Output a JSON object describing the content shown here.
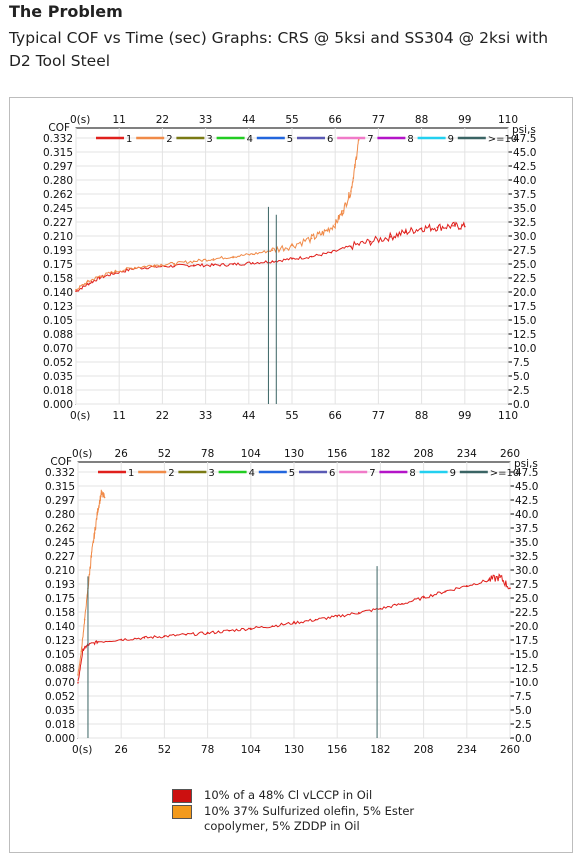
{
  "header": {
    "title": "The Problem",
    "subtitle": "Typical COF vs Time (sec) Graphs: CRS @ 5ksi and SS304 @ 2ksi with D2 Tool Steel"
  },
  "legend": [
    {
      "label": "10% of a 48% Cl vLCCP in Oil",
      "color": "#cc1010"
    },
    {
      "label": "10% 37% Sulfurized olefin, 5% Ester copolymer, 5% ZDDP in Oil",
      "color": "#f39a1c"
    }
  ],
  "chart_data": [
    {
      "type": "line",
      "ylabel": "COF",
      "y2label": "psi,s",
      "xlabel_zero": "0(s)",
      "x_ticks": [
        "0(s)",
        "11",
        "22",
        "33",
        "44",
        "55",
        "66",
        "77",
        "88",
        "99",
        "110"
      ],
      "xlim": [
        0,
        110
      ],
      "ylim": [
        0,
        0.35
      ],
      "y_ticks": [
        "0.000",
        "0.018",
        "0.035",
        "0.052",
        "0.070",
        "0.088",
        "0.105",
        "0.123",
        "0.140",
        "0.158",
        "0.175",
        "0.193",
        "0.210",
        "0.227",
        "0.245",
        "0.262",
        "0.280",
        "0.297",
        "0.315",
        "0.332"
      ],
      "y2_ticks": [
        "0.0",
        "2.5",
        "5.0",
        "7.5",
        "10.0",
        "12.5",
        "15.0",
        "17.5",
        "20.0",
        "22.5",
        "25.0",
        "27.5",
        "30.0",
        "32.5",
        "35.0",
        "37.5",
        "40.0",
        "42.5",
        "45.0",
        "47.5"
      ],
      "channel_legend": [
        {
          "label": "1",
          "color": "#e0201c"
        },
        {
          "label": "2",
          "color": "#f08a48"
        },
        {
          "label": "3",
          "color": "#7a7a14"
        },
        {
          "label": "4",
          "color": "#22cc22"
        },
        {
          "label": "5",
          "color": "#2266dd"
        },
        {
          "label": "6",
          "color": "#5a5ab4"
        },
        {
          "label": "7",
          "color": "#f07ac8"
        },
        {
          "label": "8",
          "color": "#b414c8"
        },
        {
          "label": "9",
          "color": "#22d0f0"
        },
        {
          "label": ">=10",
          "color": "#3a6464"
        }
      ],
      "series": [
        {
          "name": "1",
          "color": "#e0201c",
          "x": [
            0,
            3,
            6,
            10,
            15,
            20,
            25,
            30,
            35,
            40,
            45,
            50,
            55,
            60,
            65,
            70,
            75,
            80,
            84,
            88,
            92,
            96,
            99
          ],
          "y": [
            0.143,
            0.152,
            0.16,
            0.166,
            0.172,
            0.174,
            0.175,
            0.176,
            0.176,
            0.177,
            0.179,
            0.181,
            0.184,
            0.187,
            0.192,
            0.2,
            0.206,
            0.212,
            0.218,
            0.223,
            0.224,
            0.226,
            0.225
          ]
        },
        {
          "name": "2",
          "color": "#f08a48",
          "x": [
            0,
            3,
            6,
            10,
            15,
            20,
            25,
            30,
            35,
            40,
            45,
            50,
            55,
            60,
            63,
            66,
            68,
            70,
            71,
            72
          ],
          "y": [
            0.145,
            0.155,
            0.162,
            0.168,
            0.173,
            0.176,
            0.178,
            0.181,
            0.184,
            0.187,
            0.19,
            0.195,
            0.201,
            0.21,
            0.217,
            0.228,
            0.245,
            0.27,
            0.3,
            0.335
          ]
        },
        {
          "name": ">=10",
          "color": "#3a6464",
          "x": [
            49,
            49,
            51,
            51
          ],
          "y": [
            0.0,
            0.25,
            0.0,
            0.24
          ]
        }
      ]
    },
    {
      "type": "line",
      "ylabel": "COF",
      "y2label": "psi,s",
      "xlabel_zero": "0(s)",
      "x_ticks": [
        "0(s)",
        "26",
        "52",
        "78",
        "104",
        "130",
        "156",
        "182",
        "208",
        "234",
        "260"
      ],
      "xlim": [
        0,
        260
      ],
      "ylim": [
        0,
        0.35
      ],
      "y_ticks": [
        "0.000",
        "0.018",
        "0.035",
        "0.052",
        "0.070",
        "0.088",
        "0.105",
        "0.123",
        "0.140",
        "0.158",
        "0.175",
        "0.193",
        "0.210",
        "0.227",
        "0.245",
        "0.262",
        "0.280",
        "0.297",
        "0.315",
        "0.332"
      ],
      "y2_ticks": [
        "0.0",
        "2.5",
        "5.0",
        "7.5",
        "10.0",
        "12.5",
        "15.0",
        "17.5",
        "20.0",
        "22.5",
        "25.0",
        "27.5",
        "30.0",
        "32.5",
        "35.0",
        "37.5",
        "40.0",
        "42.5",
        "45.0",
        "47.5"
      ],
      "channel_legend": [
        {
          "label": "1",
          "color": "#e0201c"
        },
        {
          "label": "2",
          "color": "#f08a48"
        },
        {
          "label": "3",
          "color": "#7a7a14"
        },
        {
          "label": "4",
          "color": "#22cc22"
        },
        {
          "label": "5",
          "color": "#2266dd"
        },
        {
          "label": "6",
          "color": "#5a5ab4"
        },
        {
          "label": "7",
          "color": "#f07ac8"
        },
        {
          "label": "8",
          "color": "#b414c8"
        },
        {
          "label": "9",
          "color": "#22d0f0"
        },
        {
          "label": ">=10",
          "color": "#3a6464"
        }
      ],
      "series": [
        {
          "name": "1",
          "color": "#e0201c",
          "x": [
            0,
            3,
            6,
            12,
            26,
            40,
            52,
            65,
            78,
            91,
            104,
            117,
            130,
            143,
            156,
            169,
            182,
            195,
            208,
            221,
            234,
            247,
            254,
            260
          ],
          "y": [
            0.07,
            0.112,
            0.118,
            0.122,
            0.125,
            0.127,
            0.129,
            0.131,
            0.133,
            0.136,
            0.139,
            0.142,
            0.146,
            0.15,
            0.154,
            0.159,
            0.164,
            0.17,
            0.178,
            0.186,
            0.193,
            0.2,
            0.204,
            0.19
          ]
        },
        {
          "name": "2",
          "color": "#f08a48",
          "x": [
            0,
            2,
            4,
            6,
            8,
            10,
            12,
            14,
            16
          ],
          "y": [
            0.08,
            0.11,
            0.15,
            0.19,
            0.23,
            0.26,
            0.29,
            0.31,
            0.305
          ]
        },
        {
          "name": ">=10",
          "color": "#3a6464",
          "x": [
            6,
            6,
            180,
            180
          ],
          "y": [
            0.0,
            0.205,
            0.0,
            0.218
          ]
        }
      ]
    }
  ]
}
